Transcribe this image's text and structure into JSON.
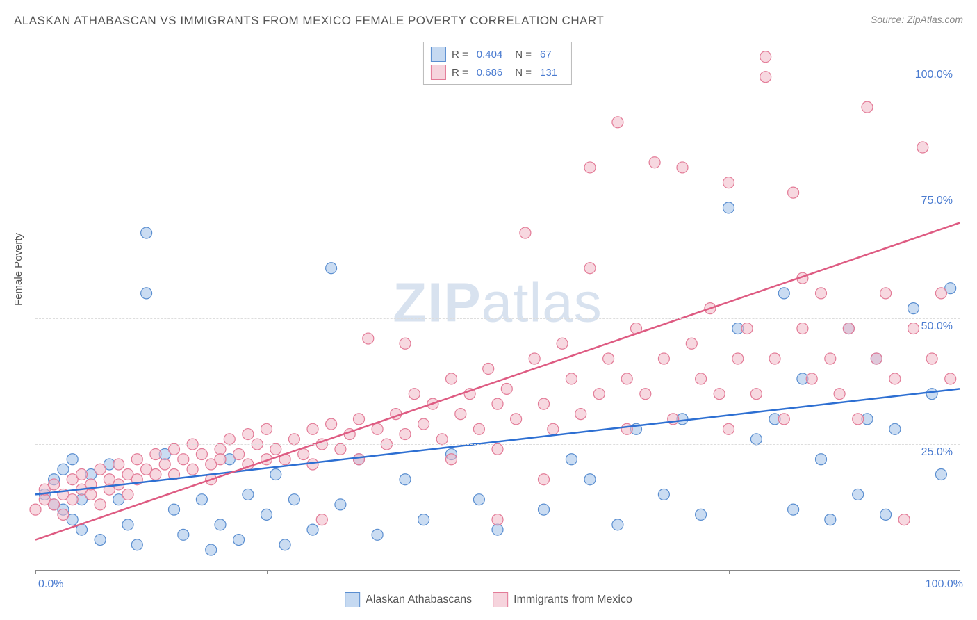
{
  "title": "ALASKAN ATHABASCAN VS IMMIGRANTS FROM MEXICO FEMALE POVERTY CORRELATION CHART",
  "source": "Source: ZipAtlas.com",
  "watermark_a": "ZIP",
  "watermark_b": "atlas",
  "ylabel": "Female Poverty",
  "chart": {
    "type": "scatter-with-regression",
    "xlim": [
      0,
      100
    ],
    "ylim": [
      0,
      105
    ],
    "xtick_positions": [
      0,
      25,
      50,
      75,
      100
    ],
    "ytick_positions": [
      25,
      50,
      75,
      100
    ],
    "ytick_labels": [
      "25.0%",
      "50.0%",
      "75.0%",
      "100.0%"
    ],
    "x_start_label": "0.0%",
    "x_end_label": "100.0%",
    "grid_color": "#dddddd",
    "axis_color": "#888888",
    "background_color": "#ffffff",
    "tick_label_color": "#4a7bd0",
    "series": [
      {
        "name": "Alaskan Athabascans",
        "fill_color": "#9fc0e8",
        "fill_opacity": 0.55,
        "stroke_color": "#5a8ed0",
        "marker_radius": 8,
        "line_color": "#2d6fd2",
        "line_width": 2.5,
        "R": "0.404",
        "N": "67",
        "regression": {
          "x1": 0,
          "y1": 15,
          "x2": 100,
          "y2": 36
        },
        "points": [
          [
            1,
            15
          ],
          [
            2,
            13
          ],
          [
            2,
            18
          ],
          [
            3,
            12
          ],
          [
            3,
            20
          ],
          [
            4,
            22
          ],
          [
            4,
            10
          ],
          [
            5,
            14
          ],
          [
            5,
            8
          ],
          [
            6,
            19
          ],
          [
            7,
            6
          ],
          [
            8,
            21
          ],
          [
            9,
            14
          ],
          [
            10,
            9
          ],
          [
            11,
            5
          ],
          [
            12,
            55
          ],
          [
            12,
            67
          ],
          [
            14,
            23
          ],
          [
            15,
            12
          ],
          [
            16,
            7
          ],
          [
            18,
            14
          ],
          [
            19,
            4
          ],
          [
            20,
            9
          ],
          [
            21,
            22
          ],
          [
            22,
            6
          ],
          [
            23,
            15
          ],
          [
            25,
            11
          ],
          [
            26,
            19
          ],
          [
            27,
            5
          ],
          [
            28,
            14
          ],
          [
            30,
            8
          ],
          [
            32,
            60
          ],
          [
            33,
            13
          ],
          [
            35,
            22
          ],
          [
            37,
            7
          ],
          [
            40,
            18
          ],
          [
            42,
            10
          ],
          [
            45,
            23
          ],
          [
            48,
            14
          ],
          [
            50,
            8
          ],
          [
            55,
            12
          ],
          [
            58,
            22
          ],
          [
            60,
            18
          ],
          [
            63,
            9
          ],
          [
            65,
            28
          ],
          [
            68,
            15
          ],
          [
            70,
            30
          ],
          [
            72,
            11
          ],
          [
            75,
            72
          ],
          [
            76,
            48
          ],
          [
            78,
            26
          ],
          [
            80,
            30
          ],
          [
            81,
            55
          ],
          [
            82,
            12
          ],
          [
            83,
            38
          ],
          [
            85,
            22
          ],
          [
            86,
            10
          ],
          [
            88,
            48
          ],
          [
            89,
            15
          ],
          [
            90,
            30
          ],
          [
            91,
            42
          ],
          [
            92,
            11
          ],
          [
            93,
            28
          ],
          [
            95,
            52
          ],
          [
            97,
            35
          ],
          [
            98,
            19
          ],
          [
            99,
            56
          ]
        ]
      },
      {
        "name": "Immigrants from Mexico",
        "fill_color": "#f0b8c6",
        "fill_opacity": 0.55,
        "stroke_color": "#e37b97",
        "marker_radius": 8,
        "line_color": "#de5b82",
        "line_width": 2.5,
        "R": "0.686",
        "N": "131",
        "regression": {
          "x1": 0,
          "y1": 6,
          "x2": 100,
          "y2": 69
        },
        "points": [
          [
            0,
            12
          ],
          [
            1,
            14
          ],
          [
            1,
            16
          ],
          [
            2,
            13
          ],
          [
            2,
            17
          ],
          [
            3,
            15
          ],
          [
            3,
            11
          ],
          [
            4,
            18
          ],
          [
            4,
            14
          ],
          [
            5,
            16
          ],
          [
            5,
            19
          ],
          [
            6,
            15
          ],
          [
            6,
            17
          ],
          [
            7,
            20
          ],
          [
            7,
            13
          ],
          [
            8,
            18
          ],
          [
            8,
            16
          ],
          [
            9,
            21
          ],
          [
            9,
            17
          ],
          [
            10,
            19
          ],
          [
            10,
            15
          ],
          [
            11,
            22
          ],
          [
            11,
            18
          ],
          [
            12,
            20
          ],
          [
            13,
            19
          ],
          [
            13,
            23
          ],
          [
            14,
            21
          ],
          [
            15,
            19
          ],
          [
            15,
            24
          ],
          [
            16,
            22
          ],
          [
            17,
            20
          ],
          [
            17,
            25
          ],
          [
            18,
            23
          ],
          [
            19,
            21
          ],
          [
            19,
            18
          ],
          [
            20,
            24
          ],
          [
            20,
            22
          ],
          [
            21,
            26
          ],
          [
            22,
            23
          ],
          [
            23,
            21
          ],
          [
            23,
            27
          ],
          [
            24,
            25
          ],
          [
            25,
            22
          ],
          [
            25,
            28
          ],
          [
            26,
            24
          ],
          [
            27,
            22
          ],
          [
            28,
            26
          ],
          [
            29,
            23
          ],
          [
            30,
            28
          ],
          [
            30,
            21
          ],
          [
            31,
            25
          ],
          [
            32,
            29
          ],
          [
            33,
            24
          ],
          [
            34,
            27
          ],
          [
            35,
            30
          ],
          [
            35,
            22
          ],
          [
            36,
            46
          ],
          [
            37,
            28
          ],
          [
            38,
            25
          ],
          [
            39,
            31
          ],
          [
            40,
            27
          ],
          [
            40,
            45
          ],
          [
            41,
            35
          ],
          [
            42,
            29
          ],
          [
            43,
            33
          ],
          [
            44,
            26
          ],
          [
            45,
            38
          ],
          [
            45,
            22
          ],
          [
            46,
            31
          ],
          [
            47,
            35
          ],
          [
            48,
            28
          ],
          [
            49,
            40
          ],
          [
            50,
            33
          ],
          [
            50,
            24
          ],
          [
            51,
            36
          ],
          [
            52,
            30
          ],
          [
            53,
            67
          ],
          [
            54,
            42
          ],
          [
            55,
            33
          ],
          [
            55,
            18
          ],
          [
            56,
            28
          ],
          [
            57,
            45
          ],
          [
            58,
            38
          ],
          [
            59,
            31
          ],
          [
            60,
            80
          ],
          [
            60,
            60
          ],
          [
            61,
            35
          ],
          [
            62,
            42
          ],
          [
            63,
            89
          ],
          [
            64,
            38
          ],
          [
            64,
            28
          ],
          [
            65,
            48
          ],
          [
            66,
            35
          ],
          [
            67,
            81
          ],
          [
            68,
            42
          ],
          [
            69,
            30
          ],
          [
            70,
            80
          ],
          [
            71,
            45
          ],
          [
            72,
            38
          ],
          [
            73,
            52
          ],
          [
            74,
            35
          ],
          [
            75,
            77
          ],
          [
            75,
            28
          ],
          [
            76,
            42
          ],
          [
            77,
            48
          ],
          [
            78,
            35
          ],
          [
            79,
            102
          ],
          [
            79,
            98
          ],
          [
            80,
            42
          ],
          [
            81,
            30
          ],
          [
            82,
            75
          ],
          [
            83,
            48
          ],
          [
            84,
            38
          ],
          [
            85,
            55
          ],
          [
            86,
            42
          ],
          [
            87,
            35
          ],
          [
            88,
            48
          ],
          [
            89,
            30
          ],
          [
            90,
            92
          ],
          [
            91,
            42
          ],
          [
            92,
            55
          ],
          [
            93,
            38
          ],
          [
            94,
            10
          ],
          [
            95,
            48
          ],
          [
            96,
            84
          ],
          [
            97,
            42
          ],
          [
            98,
            55
          ],
          [
            99,
            38
          ],
          [
            83,
            58
          ],
          [
            50,
            10
          ],
          [
            31,
            10
          ]
        ]
      }
    ]
  },
  "bottom_legend": [
    {
      "label": "Alaskan Athabascans",
      "fill": "#9fc0e8",
      "stroke": "#5a8ed0"
    },
    {
      "label": "Immigrants from Mexico",
      "fill": "#f0b8c6",
      "stroke": "#e37b97"
    }
  ]
}
